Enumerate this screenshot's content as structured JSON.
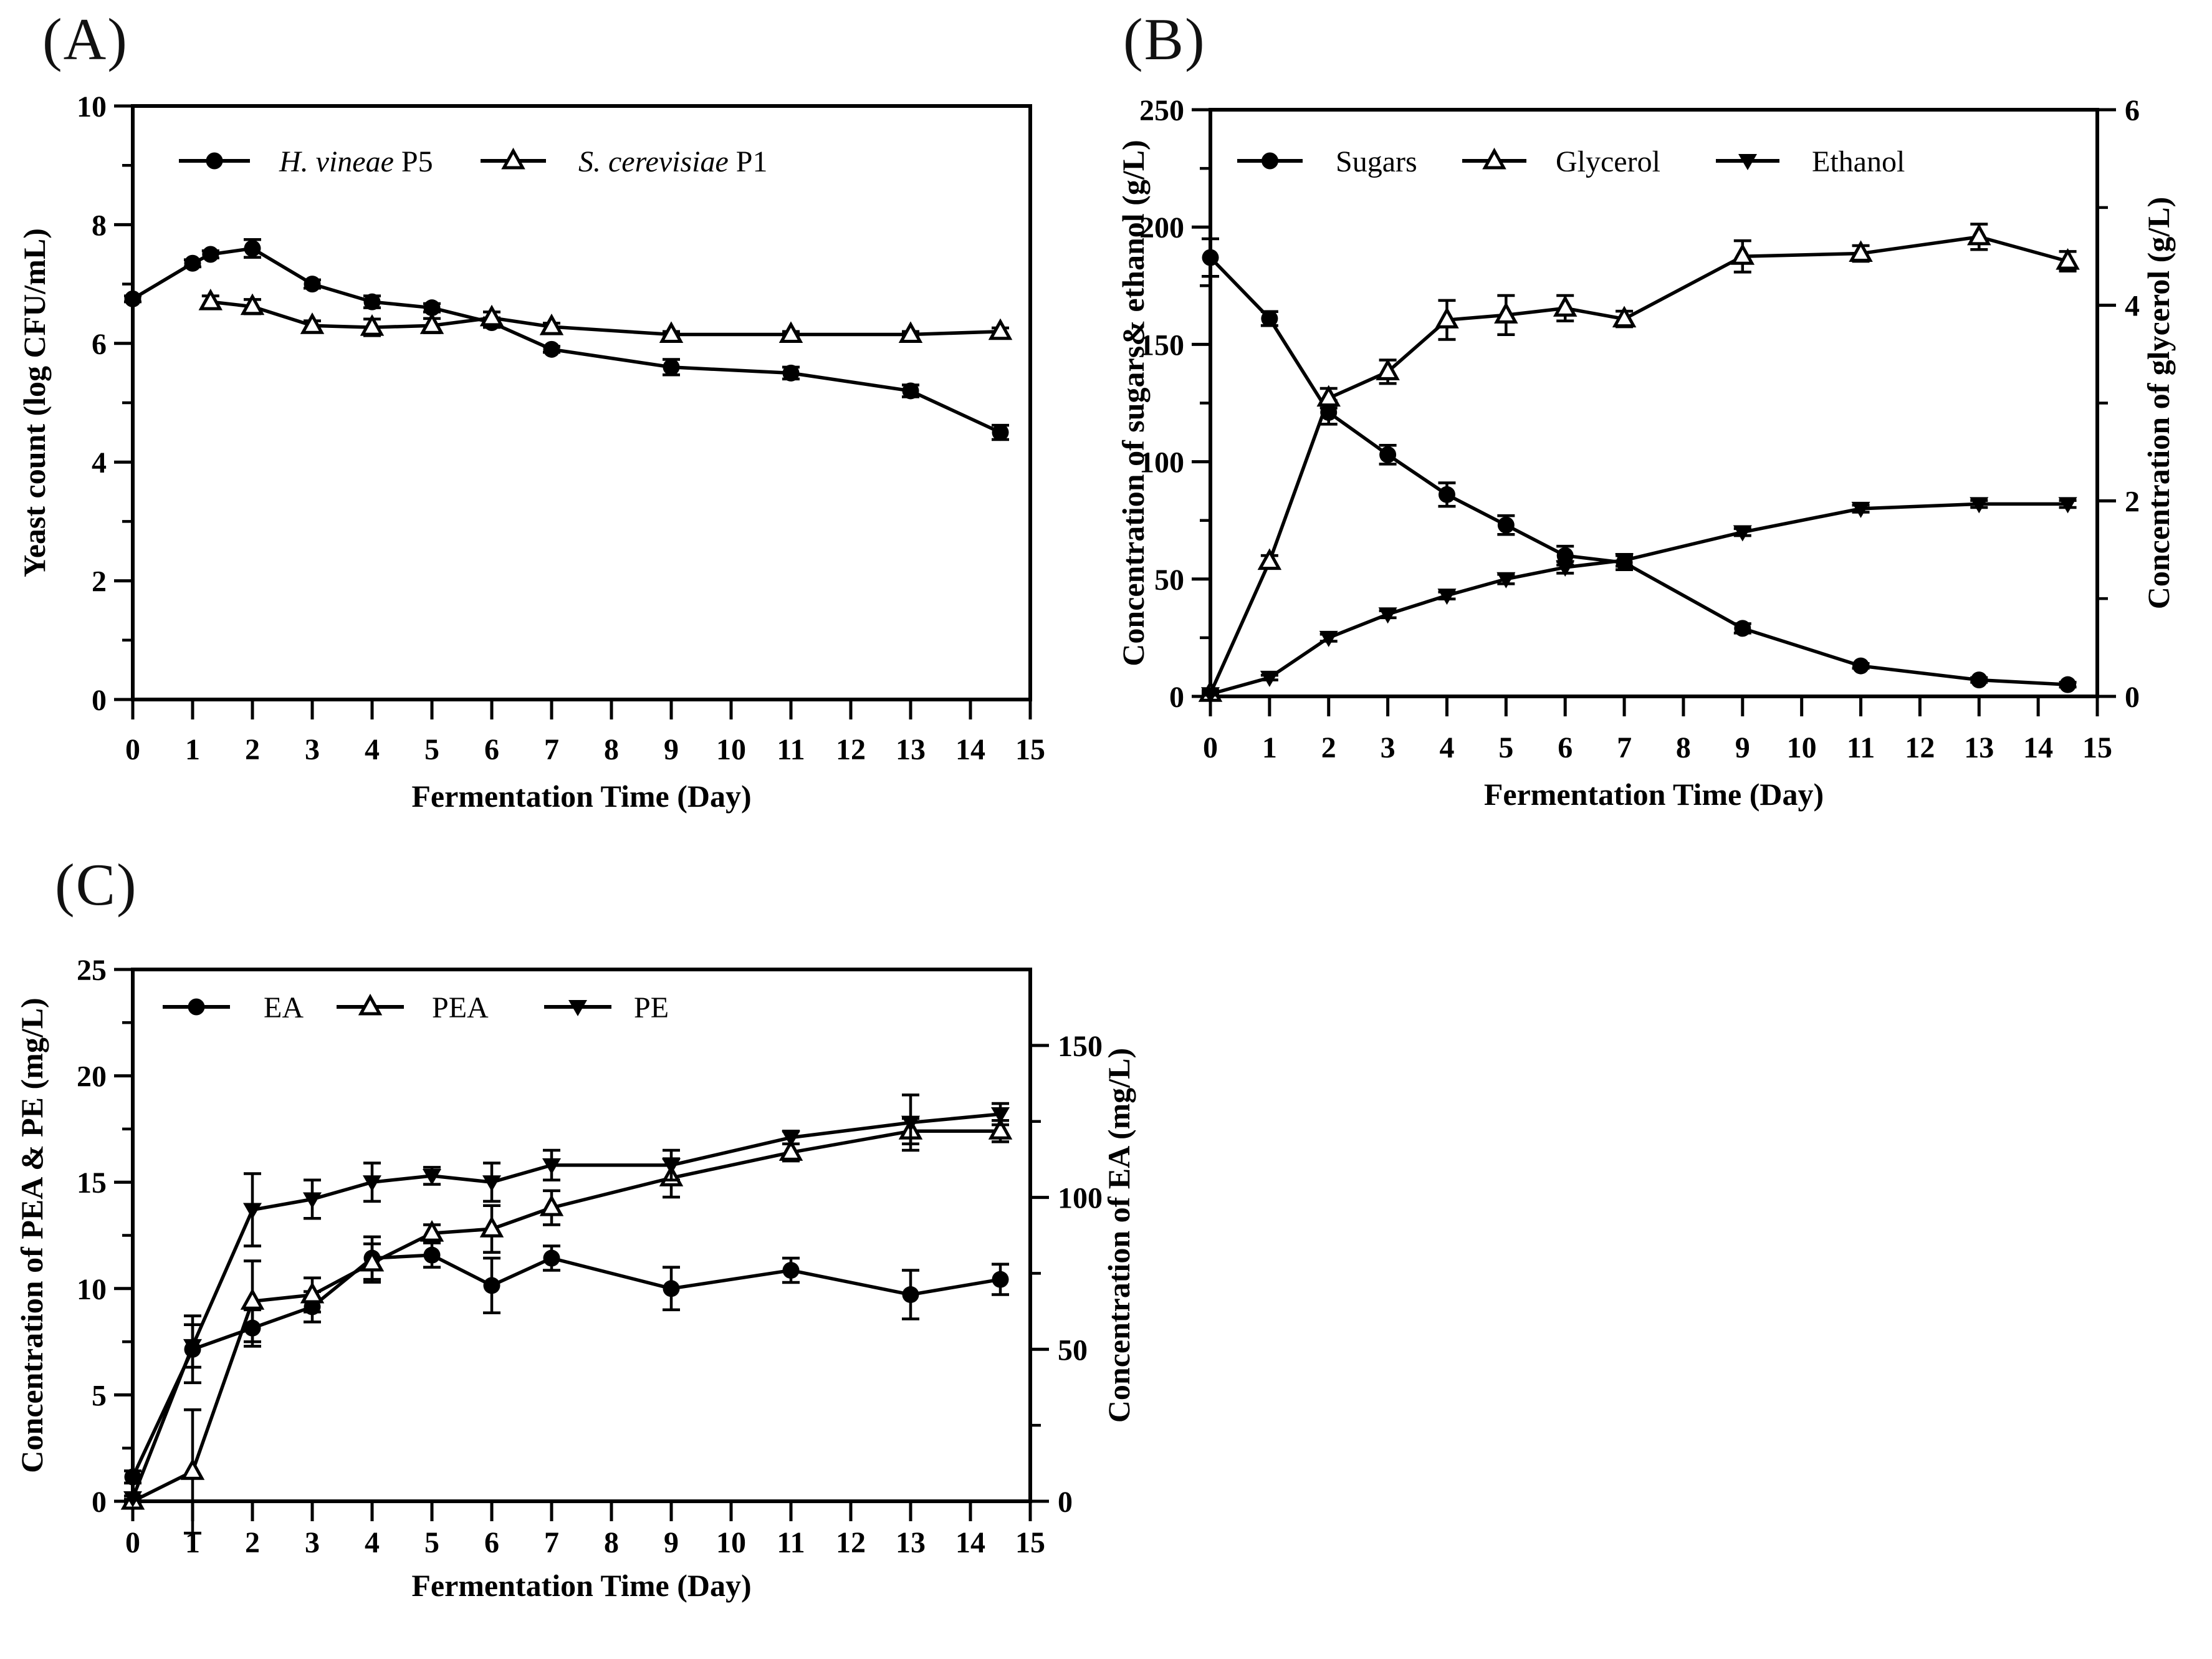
{
  "figure": {
    "background": "#ffffff",
    "ink_color": "#000000",
    "description": "Three-panel fermentation time-course figure"
  },
  "chart_data": [
    {
      "id": "A",
      "panel_label": "(A)",
      "type": "line",
      "xlabel": "Fermentation Time (Day)",
      "ylabel": "Yeast count (log CFU/mL)",
      "xlim": [
        0,
        15
      ],
      "ylim": [
        0,
        10
      ],
      "xticks": [
        0,
        1,
        2,
        3,
        4,
        5,
        6,
        7,
        8,
        9,
        10,
        11,
        12,
        13,
        14,
        15
      ],
      "yticks": [
        0,
        2,
        4,
        6,
        8,
        10
      ],
      "yminorticks": [
        1,
        3,
        5,
        7,
        9
      ],
      "grid": false,
      "legend_position": "top-left-inside",
      "legend": [
        {
          "label_italic": "H. vineae",
          "label_regular": " P5",
          "marker": "filled-circle"
        },
        {
          "label_italic": "S. cerevisiae",
          "label_regular": " P1",
          "marker": "open-triangle-up"
        }
      ],
      "series": [
        {
          "name": "H. vineae P5",
          "marker": "filled-circle",
          "axis": "left",
          "x": [
            0,
            1,
            1.3,
            2,
            3,
            4,
            5,
            6,
            7,
            9,
            11,
            13,
            14.5
          ],
          "y": [
            6.75,
            7.35,
            7.5,
            7.6,
            7.0,
            6.7,
            6.6,
            6.35,
            5.9,
            5.6,
            5.5,
            5.2,
            4.5
          ],
          "yerr": [
            0.05,
            0.06,
            0.06,
            0.15,
            0.07,
            0.1,
            0.07,
            0.08,
            0.05,
            0.13,
            0.1,
            0.1,
            0.12
          ]
        },
        {
          "name": "S. cerevisiae P1",
          "marker": "open-triangle-up",
          "axis": "left",
          "x": [
            1.3,
            2,
            3,
            4,
            5,
            6,
            7,
            9,
            11,
            13,
            14.5
          ],
          "y": [
            6.7,
            6.62,
            6.3,
            6.27,
            6.3,
            6.43,
            6.28,
            6.15,
            6.15,
            6.15,
            6.2
          ],
          "yerr": [
            0.1,
            0.12,
            0.08,
            0.14,
            0.12,
            0.1,
            0.06,
            0.05,
            0.05,
            0.05,
            0.06
          ]
        }
      ]
    },
    {
      "id": "B",
      "panel_label": "(B)",
      "type": "line",
      "xlabel": "Fermentation Time (Day)",
      "ylabel": "Concentration of sugars& ethanol (g/L)",
      "y2label": "Concentration of glycerol (g/L)",
      "xlim": [
        0,
        15
      ],
      "ylim": [
        0,
        250
      ],
      "y2lim": [
        0,
        6
      ],
      "xticks": [
        0,
        1,
        2,
        3,
        4,
        5,
        6,
        7,
        8,
        9,
        10,
        11,
        12,
        13,
        14,
        15
      ],
      "yticks": [
        0,
        50,
        100,
        150,
        200,
        250
      ],
      "yminorticks": [
        25,
        75,
        125,
        175,
        225
      ],
      "y2ticks": [
        0,
        2,
        4,
        6
      ],
      "y2minorticks": [
        1,
        3,
        5
      ],
      "grid": false,
      "legend_position": "top-left-inside",
      "legend": [
        {
          "label_italic": "",
          "label_regular": "Sugars",
          "marker": "filled-circle"
        },
        {
          "label_italic": "",
          "label_regular": "Glycerol",
          "marker": "open-triangle-up"
        },
        {
          "label_italic": "",
          "label_regular": "Ethanol",
          "marker": "filled-triangle-down"
        }
      ],
      "series": [
        {
          "name": "Sugars",
          "marker": "filled-circle",
          "axis": "left",
          "x": [
            0,
            1,
            2,
            3,
            4,
            5,
            6,
            7,
            9,
            11,
            13,
            14.5
          ],
          "y": [
            187,
            161,
            121,
            103,
            86,
            73,
            60,
            57,
            29,
            13,
            7,
            5
          ],
          "yerr": [
            8,
            3,
            5,
            4,
            5,
            4,
            4,
            3,
            2,
            1,
            1,
            1
          ]
        },
        {
          "name": "Glycerol",
          "marker": "open-triangle-up",
          "axis": "right",
          "x": [
            0,
            1,
            2,
            3,
            4,
            5,
            6,
            7,
            9,
            11,
            13,
            14.5
          ],
          "y": [
            0.03,
            1.38,
            3.05,
            3.32,
            3.85,
            3.9,
            3.97,
            3.86,
            4.5,
            4.53,
            4.7,
            4.45
          ],
          "yerr": [
            0.03,
            0.06,
            0.1,
            0.12,
            0.2,
            0.2,
            0.13,
            0.08,
            0.16,
            0.08,
            0.13,
            0.1
          ]
        },
        {
          "name": "Ethanol",
          "marker": "filled-triangle-down",
          "axis": "left",
          "x": [
            0,
            1,
            2,
            3,
            4,
            5,
            6,
            7,
            9,
            11,
            13,
            14.5
          ],
          "y": [
            1,
            8,
            25,
            35,
            43,
            50,
            55,
            58,
            70,
            80,
            82,
            82
          ],
          "yerr": [
            0.5,
            1,
            1.5,
            1.5,
            1.5,
            2,
            2.5,
            2.5,
            1.5,
            1.5,
            1.5,
            1.5
          ]
        }
      ]
    },
    {
      "id": "C",
      "panel_label": "(C)",
      "type": "line",
      "xlabel": "Fermentation Time (Day)",
      "ylabel": "Concentration of PEA & PE (mg/L)",
      "y2label": "Concentration of EA (mg/L)",
      "xlim": [
        0,
        15
      ],
      "ylim": [
        0,
        25
      ],
      "y2lim": [
        0,
        175
      ],
      "xticks": [
        0,
        1,
        2,
        3,
        4,
        5,
        6,
        7,
        8,
        9,
        10,
        11,
        12,
        13,
        14,
        15
      ],
      "yticks": [
        0,
        5,
        10,
        15,
        20,
        25
      ],
      "yminorticks": [
        2.5,
        7.5,
        12.5,
        17.5,
        22.5
      ],
      "y2ticks": [
        0,
        50,
        100,
        150
      ],
      "y2minorticks": [
        25,
        75,
        125
      ],
      "grid": false,
      "legend_position": "top-left-inside",
      "legend": [
        {
          "label_italic": "",
          "label_regular": "EA",
          "marker": "filled-circle"
        },
        {
          "label_italic": "",
          "label_regular": "PEA",
          "marker": "open-triangle-up"
        },
        {
          "label_italic": "",
          "label_regular": "PE",
          "marker": "filled-triangle-down"
        }
      ],
      "series": [
        {
          "name": "EA",
          "marker": "filled-circle",
          "axis": "right",
          "x": [
            0,
            1,
            2,
            3,
            4,
            5,
            6,
            7,
            9,
            11,
            13,
            14.5
          ],
          "y": [
            8,
            50,
            57,
            64,
            80,
            81,
            71,
            80,
            70,
            76,
            68,
            73
          ],
          "yerr": [
            2,
            11,
            6,
            5,
            7,
            4,
            9,
            4,
            7,
            4,
            8,
            5
          ]
        },
        {
          "name": "PEA",
          "marker": "open-triangle-up",
          "axis": "left",
          "x": [
            0,
            1,
            2,
            3,
            4,
            5,
            6,
            7,
            9,
            11,
            13,
            14.5
          ],
          "y": [
            0,
            1.4,
            9.4,
            9.7,
            11.2,
            12.6,
            12.8,
            13.8,
            15.2,
            16.4,
            17.4,
            17.4
          ],
          "yerr": [
            0.1,
            2.9,
            1.9,
            0.8,
            0.9,
            0.4,
            1.1,
            0.8,
            0.9,
            0.4,
            0.6,
            0.5
          ]
        },
        {
          "name": "PE",
          "marker": "filled-triangle-down",
          "axis": "left",
          "x": [
            0,
            1,
            2,
            3,
            4,
            5,
            6,
            7,
            9,
            11,
            13,
            14.5
          ],
          "y": [
            0.15,
            7.3,
            13.7,
            14.2,
            15.0,
            15.3,
            15.0,
            15.8,
            15.8,
            17.1,
            17.8,
            18.2
          ],
          "yerr": [
            0.1,
            1.0,
            1.7,
            0.9,
            0.9,
            0.4,
            0.9,
            0.7,
            0.7,
            0.3,
            1.3,
            0.5
          ]
        }
      ]
    }
  ]
}
